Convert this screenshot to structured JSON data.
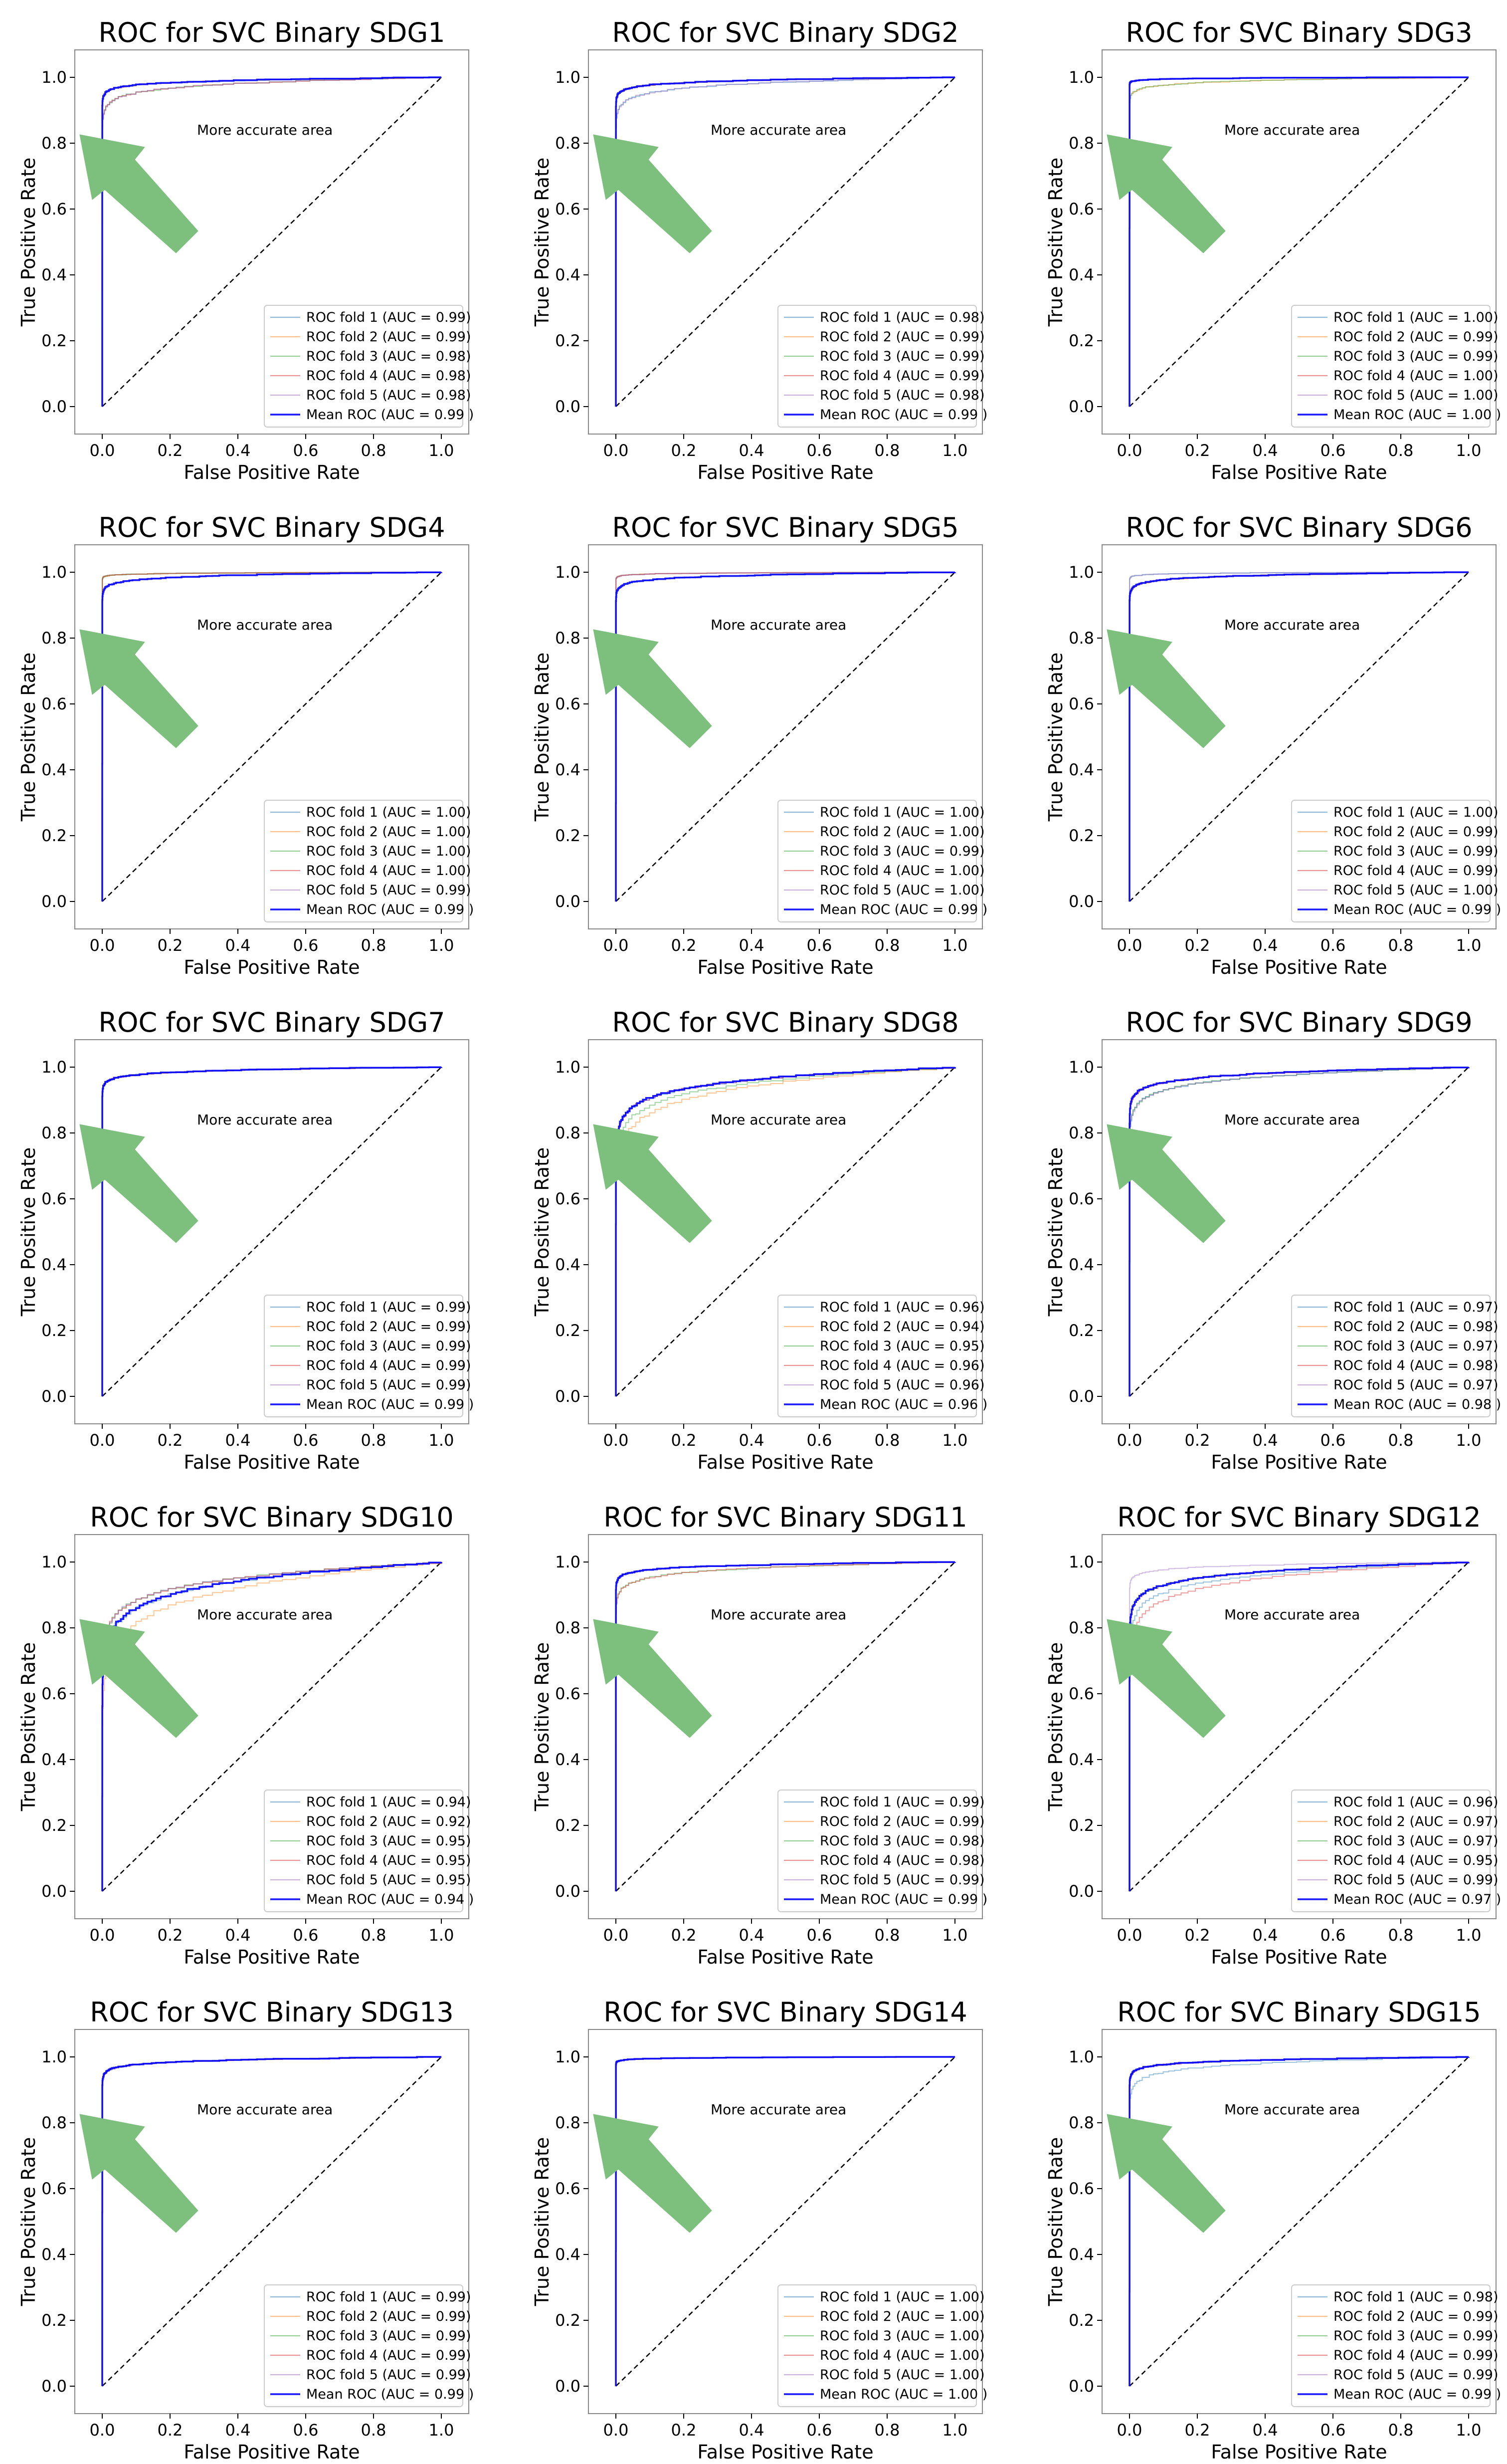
{
  "figure": {
    "xlabel": "False Positive Rate",
    "ylabel": "True Positive Rate",
    "annotation": "More accurate area",
    "xticks": [
      "0.0",
      "0.2",
      "0.4",
      "0.6",
      "0.8",
      "1.0"
    ],
    "yticks": [
      "0.0",
      "0.2",
      "0.4",
      "0.6",
      "0.8",
      "1.0"
    ]
  },
  "colors": {
    "fold1": "#1f77b4",
    "fold2": "#ff7f0e",
    "fold3": "#2ca02c",
    "fold4": "#d62728",
    "fold5": "#9467bd",
    "mean": "#0000ff",
    "chance": "#000000",
    "arrow": "#7dbf7d"
  },
  "chart_data": [
    {
      "type": "line",
      "title": "ROC for SVC Binary SDG1",
      "xlabel": "False Positive Rate",
      "ylabel": "True Positive Rate",
      "xlim": [
        0,
        1
      ],
      "ylim": [
        0,
        1
      ],
      "legend": "lower right",
      "series": [
        {
          "name": "ROC fold 1 (AUC = 0.99)",
          "auc": 0.99
        },
        {
          "name": "ROC fold 2 (AUC = 0.99)",
          "auc": 0.99
        },
        {
          "name": "ROC fold 3 (AUC = 0.98)",
          "auc": 0.98
        },
        {
          "name": "ROC fold 4 (AUC = 0.98)",
          "auc": 0.98
        },
        {
          "name": "ROC fold 5 (AUC = 0.98)",
          "auc": 0.98
        },
        {
          "name": "Mean ROC (AUC = 0.99 )",
          "auc": 0.99
        }
      ]
    },
    {
      "type": "line",
      "title": "ROC for SVC Binary SDG2",
      "xlabel": "False Positive Rate",
      "ylabel": "True Positive Rate",
      "xlim": [
        0,
        1
      ],
      "ylim": [
        0,
        1
      ],
      "legend": "lower right",
      "series": [
        {
          "name": "ROC fold 1 (AUC = 0.98)",
          "auc": 0.98
        },
        {
          "name": "ROC fold 2 (AUC = 0.99)",
          "auc": 0.99
        },
        {
          "name": "ROC fold 3 (AUC = 0.99)",
          "auc": 0.99
        },
        {
          "name": "ROC fold 4 (AUC = 0.99)",
          "auc": 0.99
        },
        {
          "name": "ROC fold 5 (AUC = 0.98)",
          "auc": 0.98
        },
        {
          "name": "Mean ROC (AUC = 0.99 )",
          "auc": 0.99
        }
      ]
    },
    {
      "type": "line",
      "title": "ROC for SVC Binary SDG3",
      "xlabel": "False Positive Rate",
      "ylabel": "True Positive Rate",
      "xlim": [
        0,
        1
      ],
      "ylim": [
        0,
        1
      ],
      "legend": "lower right",
      "series": [
        {
          "name": "ROC fold 1 (AUC = 1.00)",
          "auc": 1.0
        },
        {
          "name": "ROC fold 2 (AUC = 0.99)",
          "auc": 0.99
        },
        {
          "name": "ROC fold 3 (AUC = 0.99)",
          "auc": 0.99
        },
        {
          "name": "ROC fold 4 (AUC = 1.00)",
          "auc": 1.0
        },
        {
          "name": "ROC fold 5 (AUC = 1.00)",
          "auc": 1.0
        },
        {
          "name": "Mean ROC (AUC = 1.00 )",
          "auc": 1.0
        }
      ]
    },
    {
      "type": "line",
      "title": "ROC for SVC Binary SDG4",
      "xlabel": "False Positive Rate",
      "ylabel": "True Positive Rate",
      "xlim": [
        0,
        1
      ],
      "ylim": [
        0,
        1
      ],
      "legend": "lower right",
      "series": [
        {
          "name": "ROC fold 1 (AUC = 1.00)",
          "auc": 1.0
        },
        {
          "name": "ROC fold 2 (AUC = 1.00)",
          "auc": 1.0
        },
        {
          "name": "ROC fold 3 (AUC = 1.00)",
          "auc": 1.0
        },
        {
          "name": "ROC fold 4 (AUC = 1.00)",
          "auc": 1.0
        },
        {
          "name": "ROC fold 5 (AUC = 0.99)",
          "auc": 0.99
        },
        {
          "name": "Mean ROC (AUC = 0.99 )",
          "auc": 0.99
        }
      ]
    },
    {
      "type": "line",
      "title": "ROC for SVC Binary SDG5",
      "xlabel": "False Positive Rate",
      "ylabel": "True Positive Rate",
      "xlim": [
        0,
        1
      ],
      "ylim": [
        0,
        1
      ],
      "legend": "lower right",
      "series": [
        {
          "name": "ROC fold 1 (AUC = 1.00)",
          "auc": 1.0
        },
        {
          "name": "ROC fold 2 (AUC = 1.00)",
          "auc": 1.0
        },
        {
          "name": "ROC fold 3 (AUC = 0.99)",
          "auc": 0.99
        },
        {
          "name": "ROC fold 4 (AUC = 1.00)",
          "auc": 1.0
        },
        {
          "name": "ROC fold 5 (AUC = 1.00)",
          "auc": 1.0
        },
        {
          "name": "Mean ROC (AUC = 0.99 )",
          "auc": 0.99
        }
      ]
    },
    {
      "type": "line",
      "title": "ROC for SVC Binary SDG6",
      "xlabel": "False Positive Rate",
      "ylabel": "True Positive Rate",
      "xlim": [
        0,
        1
      ],
      "ylim": [
        0,
        1
      ],
      "legend": "lower right",
      "series": [
        {
          "name": "ROC fold 1 (AUC = 1.00)",
          "auc": 1.0
        },
        {
          "name": "ROC fold 2 (AUC = 0.99)",
          "auc": 0.99
        },
        {
          "name": "ROC fold 3 (AUC = 0.99)",
          "auc": 0.99
        },
        {
          "name": "ROC fold 4 (AUC = 0.99)",
          "auc": 0.99
        },
        {
          "name": "ROC fold 5 (AUC = 1.00)",
          "auc": 1.0
        },
        {
          "name": "Mean ROC (AUC = 0.99 )",
          "auc": 0.99
        }
      ]
    },
    {
      "type": "line",
      "title": "ROC for SVC Binary SDG7",
      "xlabel": "False Positive Rate",
      "ylabel": "True Positive Rate",
      "xlim": [
        0,
        1
      ],
      "ylim": [
        0,
        1
      ],
      "legend": "lower right",
      "series": [
        {
          "name": "ROC fold 1 (AUC = 0.99)",
          "auc": 0.99
        },
        {
          "name": "ROC fold 2 (AUC = 0.99)",
          "auc": 0.99
        },
        {
          "name": "ROC fold 3 (AUC = 0.99)",
          "auc": 0.99
        },
        {
          "name": "ROC fold 4 (AUC = 0.99)",
          "auc": 0.99
        },
        {
          "name": "ROC fold 5 (AUC = 0.99)",
          "auc": 0.99
        },
        {
          "name": "Mean ROC (AUC = 0.99 )",
          "auc": 0.99
        }
      ]
    },
    {
      "type": "line",
      "title": "ROC for SVC Binary SDG8",
      "xlabel": "False Positive Rate",
      "ylabel": "True Positive Rate",
      "xlim": [
        0,
        1
      ],
      "ylim": [
        0,
        1
      ],
      "legend": "lower right",
      "series": [
        {
          "name": "ROC fold 1 (AUC = 0.96)",
          "auc": 0.96
        },
        {
          "name": "ROC fold 2 (AUC = 0.94)",
          "auc": 0.94
        },
        {
          "name": "ROC fold 3 (AUC = 0.95)",
          "auc": 0.95
        },
        {
          "name": "ROC fold 4 (AUC = 0.96)",
          "auc": 0.96
        },
        {
          "name": "ROC fold 5 (AUC = 0.96)",
          "auc": 0.96
        },
        {
          "name": "Mean ROC (AUC = 0.96 )",
          "auc": 0.96
        }
      ]
    },
    {
      "type": "line",
      "title": "ROC for SVC Binary SDG9",
      "xlabel": "False Positive Rate",
      "ylabel": "True Positive Rate",
      "xlim": [
        0,
        1
      ],
      "ylim": [
        0,
        1
      ],
      "legend": "lower right",
      "series": [
        {
          "name": "ROC fold 1 (AUC = 0.97)",
          "auc": 0.97
        },
        {
          "name": "ROC fold 2 (AUC = 0.98)",
          "auc": 0.98
        },
        {
          "name": "ROC fold 3 (AUC = 0.97)",
          "auc": 0.97
        },
        {
          "name": "ROC fold 4 (AUC = 0.98)",
          "auc": 0.98
        },
        {
          "name": "ROC fold 5 (AUC = 0.97)",
          "auc": 0.97
        },
        {
          "name": "Mean ROC (AUC = 0.98 )",
          "auc": 0.98
        }
      ]
    },
    {
      "type": "line",
      "title": "ROC for SVC Binary SDG10",
      "xlabel": "False Positive Rate",
      "ylabel": "True Positive Rate",
      "xlim": [
        0,
        1
      ],
      "ylim": [
        0,
        1
      ],
      "legend": "lower right",
      "series": [
        {
          "name": "ROC fold 1 (AUC = 0.94)",
          "auc": 0.94
        },
        {
          "name": "ROC fold 2 (AUC = 0.92)",
          "auc": 0.92
        },
        {
          "name": "ROC fold 3 (AUC = 0.95)",
          "auc": 0.95
        },
        {
          "name": "ROC fold 4 (AUC = 0.95)",
          "auc": 0.95
        },
        {
          "name": "ROC fold 5 (AUC = 0.95)",
          "auc": 0.95
        },
        {
          "name": "Mean ROC (AUC = 0.94 )",
          "auc": 0.94
        }
      ]
    },
    {
      "type": "line",
      "title": "ROC for SVC Binary SDG11",
      "xlabel": "False Positive Rate",
      "ylabel": "True Positive Rate",
      "xlim": [
        0,
        1
      ],
      "ylim": [
        0,
        1
      ],
      "legend": "lower right",
      "series": [
        {
          "name": "ROC fold 1 (AUC = 0.99)",
          "auc": 0.99
        },
        {
          "name": "ROC fold 2 (AUC = 0.99)",
          "auc": 0.99
        },
        {
          "name": "ROC fold 3 (AUC = 0.98)",
          "auc": 0.98
        },
        {
          "name": "ROC fold 4 (AUC = 0.98)",
          "auc": 0.98
        },
        {
          "name": "ROC fold 5 (AUC = 0.99)",
          "auc": 0.99
        },
        {
          "name": "Mean ROC (AUC = 0.99 )",
          "auc": 0.99
        }
      ]
    },
    {
      "type": "line",
      "title": "ROC for SVC Binary SDG12",
      "xlabel": "False Positive Rate",
      "ylabel": "True Positive Rate",
      "xlim": [
        0,
        1
      ],
      "ylim": [
        0,
        1
      ],
      "legend": "lower right",
      "series": [
        {
          "name": "ROC fold 1 (AUC = 0.96)",
          "auc": 0.96
        },
        {
          "name": "ROC fold 2 (AUC = 0.97)",
          "auc": 0.97
        },
        {
          "name": "ROC fold 3 (AUC = 0.97)",
          "auc": 0.97
        },
        {
          "name": "ROC fold 4 (AUC = 0.95)",
          "auc": 0.95
        },
        {
          "name": "ROC fold 5 (AUC = 0.99)",
          "auc": 0.99
        },
        {
          "name": "Mean ROC (AUC = 0.97 )",
          "auc": 0.97
        }
      ]
    },
    {
      "type": "line",
      "title": "ROC for SVC Binary SDG13",
      "xlabel": "False Positive Rate",
      "ylabel": "True Positive Rate",
      "xlim": [
        0,
        1
      ],
      "ylim": [
        0,
        1
      ],
      "legend": "lower right",
      "series": [
        {
          "name": "ROC fold 1 (AUC = 0.99)",
          "auc": 0.99
        },
        {
          "name": "ROC fold 2 (AUC = 0.99)",
          "auc": 0.99
        },
        {
          "name": "ROC fold 3 (AUC = 0.99)",
          "auc": 0.99
        },
        {
          "name": "ROC fold 4 (AUC = 0.99)",
          "auc": 0.99
        },
        {
          "name": "ROC fold 5 (AUC = 0.99)",
          "auc": 0.99
        },
        {
          "name": "Mean ROC (AUC = 0.99 )",
          "auc": 0.99
        }
      ]
    },
    {
      "type": "line",
      "title": "ROC for SVC Binary SDG14",
      "xlabel": "False Positive Rate",
      "ylabel": "True Positive Rate",
      "xlim": [
        0,
        1
      ],
      "ylim": [
        0,
        1
      ],
      "legend": "lower right",
      "series": [
        {
          "name": "ROC fold 1 (AUC = 1.00)",
          "auc": 1.0
        },
        {
          "name": "ROC fold 2 (AUC = 1.00)",
          "auc": 1.0
        },
        {
          "name": "ROC fold 3 (AUC = 1.00)",
          "auc": 1.0
        },
        {
          "name": "ROC fold 4 (AUC = 1.00)",
          "auc": 1.0
        },
        {
          "name": "ROC fold 5 (AUC = 1.00)",
          "auc": 1.0
        },
        {
          "name": "Mean ROC (AUC = 1.00 )",
          "auc": 1.0
        }
      ]
    },
    {
      "type": "line",
      "title": "ROC for SVC Binary SDG15",
      "xlabel": "False Positive Rate",
      "ylabel": "True Positive Rate",
      "xlim": [
        0,
        1
      ],
      "ylim": [
        0,
        1
      ],
      "legend": "lower right",
      "series": [
        {
          "name": "ROC fold 1 (AUC = 0.98)",
          "auc": 0.98
        },
        {
          "name": "ROC fold 2 (AUC = 0.99)",
          "auc": 0.99
        },
        {
          "name": "ROC fold 3 (AUC = 0.99)",
          "auc": 0.99
        },
        {
          "name": "ROC fold 4 (AUC = 0.99)",
          "auc": 0.99
        },
        {
          "name": "ROC fold 5 (AUC = 0.99)",
          "auc": 0.99
        },
        {
          "name": "Mean ROC (AUC = 0.99 )",
          "auc": 0.99
        }
      ]
    }
  ]
}
